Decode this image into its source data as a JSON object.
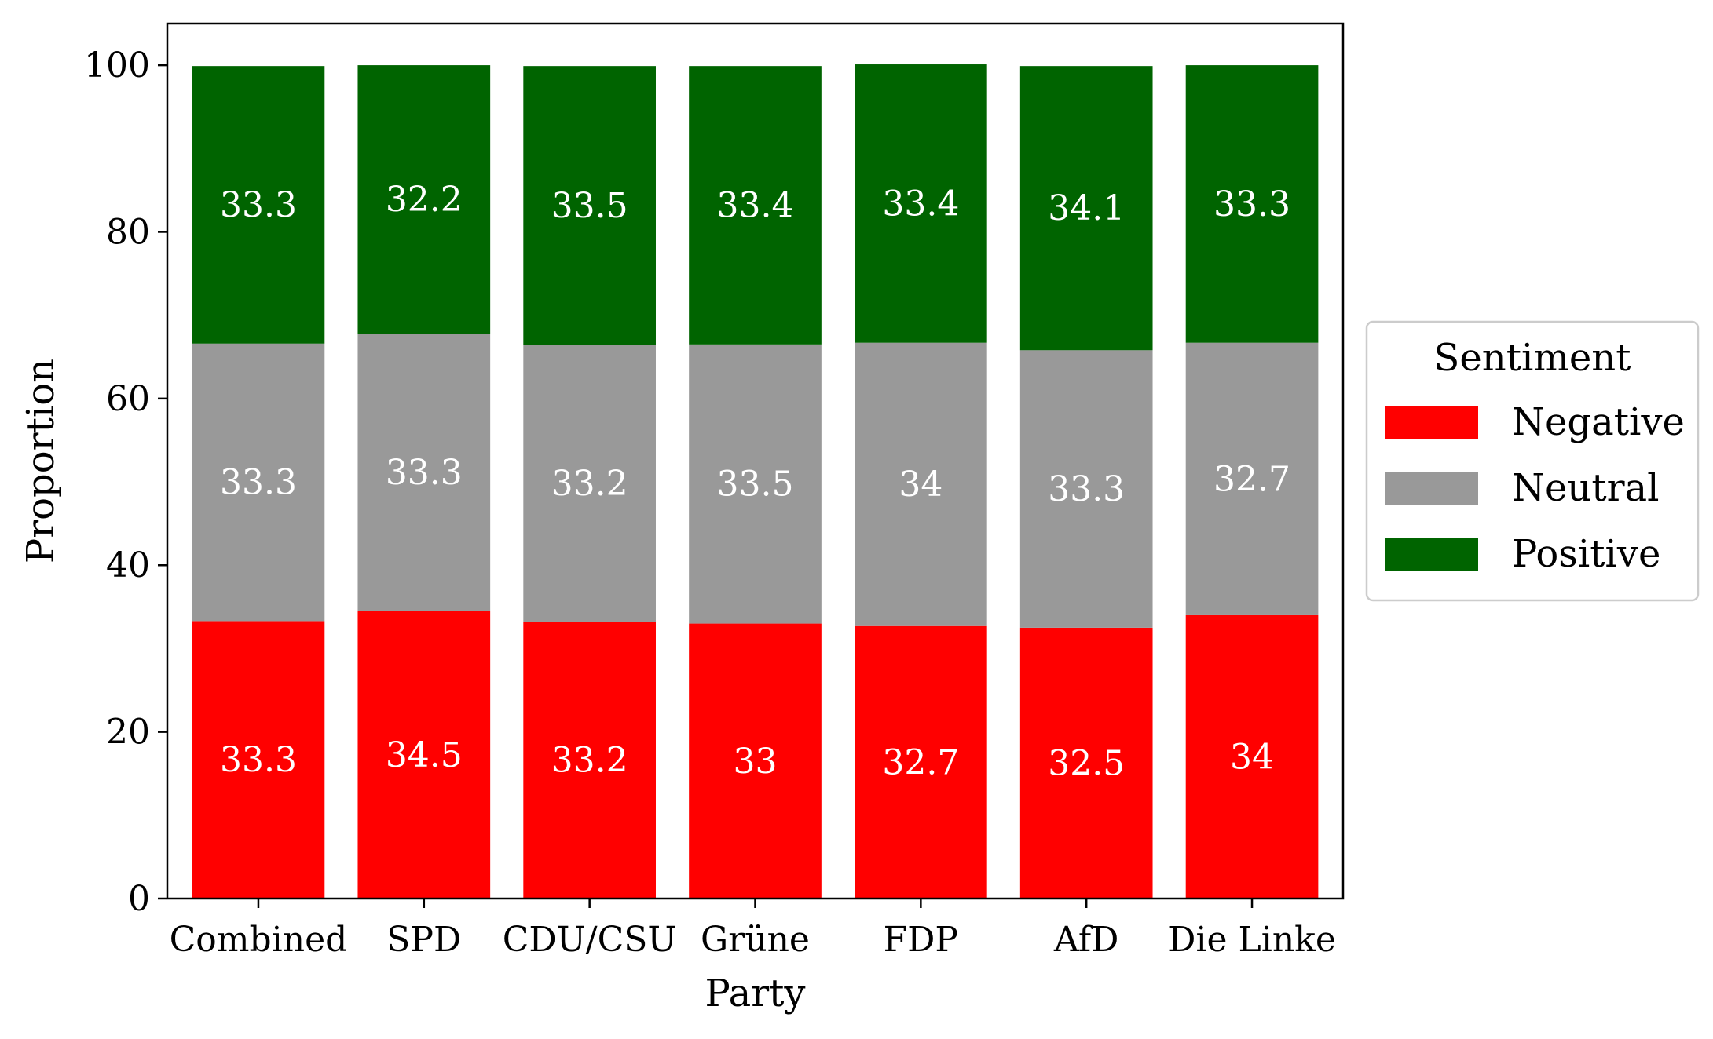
{
  "chart_data": {
    "type": "bar",
    "stacked": true,
    "categories": [
      "Combined",
      "SPD",
      "CDU/CSU",
      "Grüne",
      "FDP",
      "AfD",
      "Die Linke"
    ],
    "series": [
      {
        "name": "Negative",
        "color": "#ff0000",
        "values": [
          33.3,
          34.5,
          33.2,
          33,
          32.7,
          32.5,
          34
        ],
        "labels": [
          "33.3",
          "34.5",
          "33.2",
          "33",
          "32.7",
          "32.5",
          "34"
        ]
      },
      {
        "name": "Neutral",
        "color": "#999999",
        "values": [
          33.3,
          33.3,
          33.2,
          33.5,
          34,
          33.3,
          32.7
        ],
        "labels": [
          "33.3",
          "33.3",
          "33.2",
          "33.5",
          "34",
          "33.3",
          "32.7"
        ]
      },
      {
        "name": "Positive",
        "color": "#006400",
        "values": [
          33.3,
          32.2,
          33.5,
          33.4,
          33.4,
          34.1,
          33.3
        ],
        "labels": [
          "33.3",
          "32.2",
          "33.5",
          "33.4",
          "33.4",
          "34.1",
          "33.3"
        ]
      }
    ],
    "xlabel": "Party",
    "ylabel": "Proportion",
    "ylim": [
      0,
      105
    ],
    "yticks": [
      0,
      20,
      40,
      60,
      80,
      100
    ],
    "ytick_labels": [
      "0",
      "20",
      "40",
      "60",
      "80",
      "100"
    ],
    "grid": false,
    "legend": {
      "title": "Sentiment",
      "placement": "outside-right"
    }
  }
}
